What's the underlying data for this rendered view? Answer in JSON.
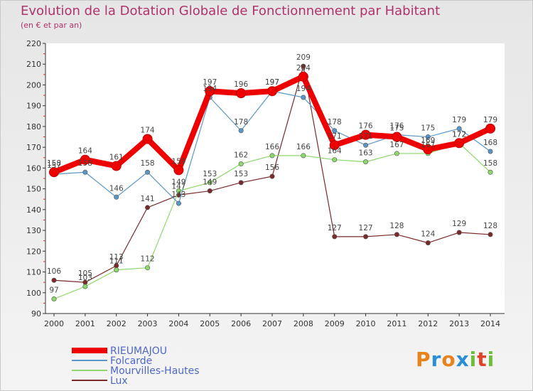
{
  "title": "Evolution de la Dotation Globale de Fonctionnement par Habitant",
  "subtitle": "(en € et par an)",
  "logo": {
    "text": "Proxiti",
    "colors": [
      "#e8821c",
      "#2a8ed6",
      "#e8821c",
      "#2a8ed6",
      "#6dbf3a",
      "#e0442a",
      "#6dbf3a"
    ]
  },
  "chart_data": {
    "type": "line",
    "x": [
      2000,
      2001,
      2002,
      2003,
      2004,
      2005,
      2006,
      2007,
      2008,
      2009,
      2010,
      2011,
      2012,
      2013,
      2014
    ],
    "ylim": [
      90,
      220
    ],
    "yticks": [
      90,
      100,
      110,
      120,
      130,
      140,
      150,
      160,
      170,
      180,
      190,
      200,
      210,
      220
    ],
    "grid": false,
    "legend_position": "bottom-left",
    "series": [
      {
        "name": "RIEUMAJOU",
        "color": "#ee0000",
        "values": [
          158,
          164,
          161,
          174,
          159,
          197,
          196,
          197,
          204,
          171,
          176,
          175,
          169,
          172,
          179
        ],
        "labels": [
          "158",
          "164",
          "161",
          "174",
          "159",
          "197",
          "196",
          "197",
          "204",
          "171",
          "176",
          "175",
          "169",
          "172",
          "179"
        ]
      },
      {
        "name": "Folcarde",
        "color": "#5a96c8",
        "values": [
          157,
          158,
          146,
          158,
          143,
          194,
          178,
          197,
          194,
          178,
          171,
          176,
          175,
          179,
          168
        ],
        "labels": [
          "157",
          "158",
          "146",
          "158",
          "143",
          "194",
          "178",
          "197",
          "194",
          "178",
          "171",
          "176",
          "175",
          "179",
          "168"
        ]
      },
      {
        "name": "Mourvilles-Hautes",
        "color": "#8cd86a",
        "values": [
          97,
          103,
          111,
          112,
          149,
          153,
          162,
          166,
          166,
          164,
          163,
          167,
          167,
          172,
          158
        ],
        "labels": [
          "97",
          "103",
          "111",
          "112",
          "149",
          "153",
          "162",
          "166",
          "166",
          "164",
          "163",
          "167",
          "167",
          "172",
          "158"
        ]
      },
      {
        "name": "Lux",
        "color": "#7a2a2a",
        "values": [
          106,
          105,
          113,
          141,
          147,
          149,
          153,
          156,
          209,
          127,
          127,
          128,
          124,
          129,
          128
        ],
        "labels": [
          "106",
          "105",
          "113",
          "141",
          "147",
          "149",
          "153",
          "156",
          "209",
          "127",
          "127",
          "128",
          "124",
          "129",
          "128"
        ]
      }
    ]
  }
}
